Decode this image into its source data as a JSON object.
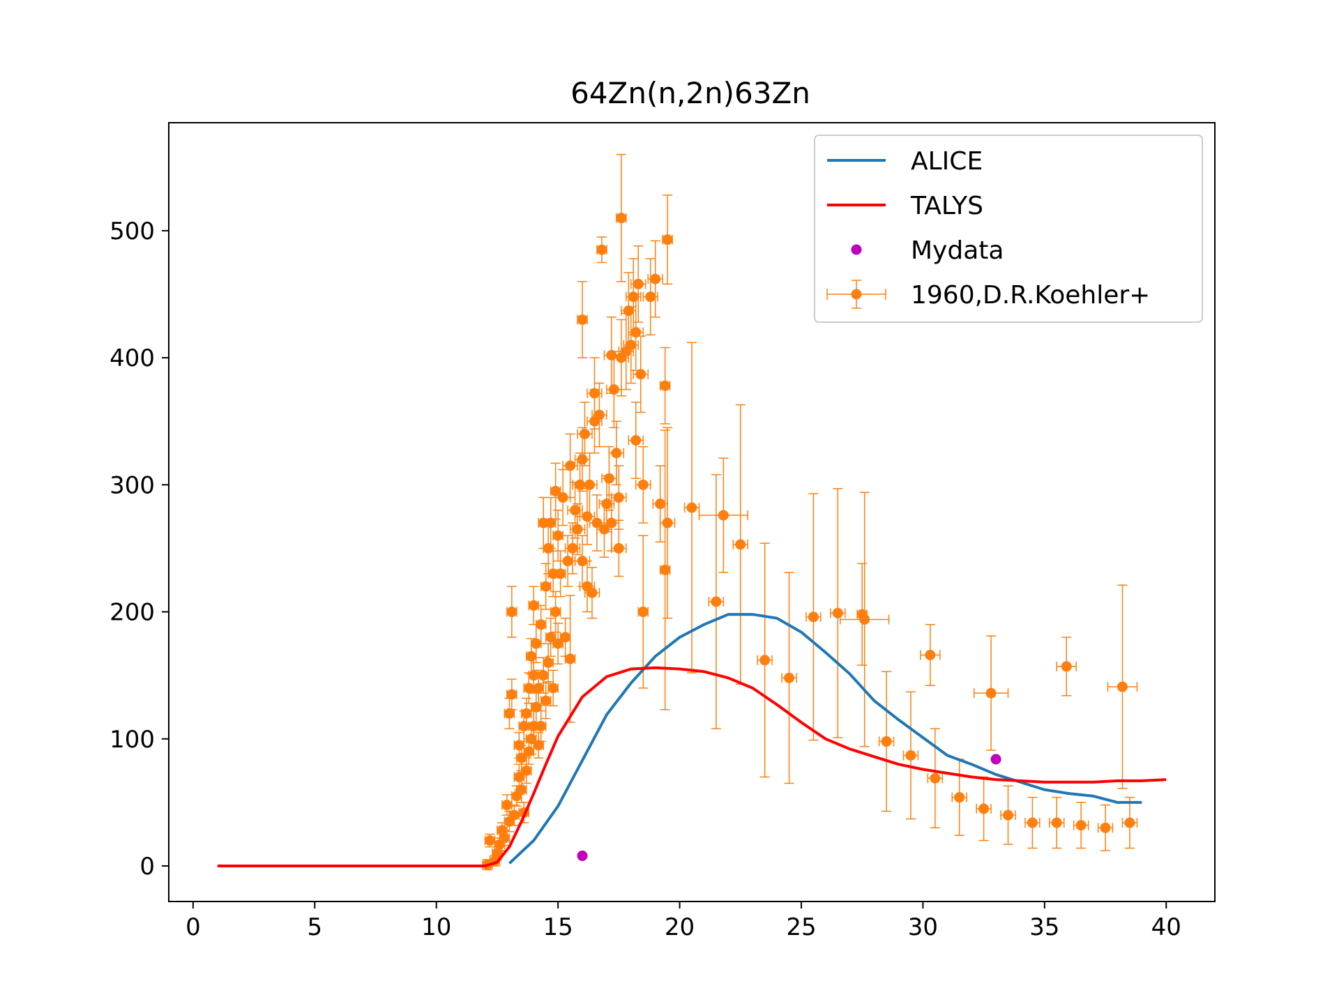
{
  "chart_data": {
    "type": "scatter",
    "title": "64Zn(n,2n)63Zn",
    "xlabel": "",
    "ylabel": "",
    "xlim": [
      -1,
      42
    ],
    "ylim": [
      -28,
      585
    ],
    "xticks": [
      0,
      5,
      10,
      15,
      20,
      25,
      30,
      35,
      40
    ],
    "yticks": [
      0,
      100,
      200,
      300,
      400,
      500
    ],
    "grid": false,
    "legend_position": "top-right",
    "series": [
      {
        "name": "ALICE",
        "kind": "line",
        "color": "#1f77b4",
        "x": [
          13,
          14,
          15,
          16,
          17,
          18,
          19,
          20,
          21,
          22,
          23,
          24,
          25,
          26,
          27,
          28,
          29,
          30,
          31,
          32,
          33,
          34,
          35,
          36,
          37,
          38,
          39
        ],
        "y": [
          2,
          20,
          47,
          83,
          119,
          144,
          165,
          180,
          190,
          198,
          198,
          195,
          184,
          168,
          151,
          130,
          115,
          101,
          87,
          80,
          72,
          66,
          60,
          57,
          55,
          50,
          50
        ]
      },
      {
        "name": "TALYS",
        "kind": "line",
        "color": "#ff0000",
        "x": [
          1,
          2,
          3,
          4,
          5,
          6,
          7,
          8,
          9,
          10,
          11,
          12,
          12.5,
          13,
          13.5,
          14,
          14.5,
          15,
          16,
          17,
          18,
          19,
          20,
          21,
          22,
          23,
          24,
          25,
          26,
          27,
          28,
          29,
          30,
          31,
          32,
          33,
          34,
          35,
          36,
          37,
          38,
          39,
          40
        ],
        "y": [
          0,
          0,
          0,
          0,
          0,
          0,
          0,
          0,
          0,
          0,
          0,
          0,
          3,
          15,
          35,
          57,
          80,
          102,
          133,
          149,
          155,
          156,
          155,
          153,
          148,
          140,
          127,
          113,
          100,
          92,
          86,
          80,
          76,
          73,
          70,
          68,
          67,
          66,
          66,
          66,
          67,
          67,
          68
        ],
        "note_dummy": ""
      },
      {
        "name": "Mydata",
        "kind": "points",
        "color": "#bf00bf",
        "x": [
          16,
          33
        ],
        "y": [
          8,
          84
        ]
      },
      {
        "name": "1960,D.R.Koehler+",
        "kind": "errorbar",
        "color": "#ff7f0e",
        "points": [
          [
            12.1,
            1,
            0.2,
            4
          ],
          [
            12.2,
            20,
            0.2,
            5
          ],
          [
            12.4,
            4,
            0.2,
            4
          ],
          [
            12.5,
            10,
            0.2,
            5
          ],
          [
            12.6,
            17,
            0.2,
            5
          ],
          [
            12.7,
            28,
            0.2,
            6
          ],
          [
            12.8,
            22,
            0.2,
            6
          ],
          [
            12.9,
            48,
            0.2,
            8
          ],
          [
            13.0,
            35,
            0.2,
            8
          ],
          [
            13.0,
            120,
            0.2,
            12
          ],
          [
            13.1,
            135,
            0.2,
            12
          ],
          [
            13.1,
            200,
            0.2,
            20
          ],
          [
            13.2,
            40,
            0.2,
            8
          ],
          [
            13.3,
            55,
            0.2,
            8
          ],
          [
            13.4,
            70,
            0.2,
            10
          ],
          [
            13.4,
            95,
            0.2,
            10
          ],
          [
            13.5,
            60,
            0.2,
            10
          ],
          [
            13.5,
            85,
            0.2,
            10
          ],
          [
            13.6,
            42,
            0.2,
            8
          ],
          [
            13.6,
            110,
            0.2,
            12
          ],
          [
            13.7,
            75,
            0.2,
            10
          ],
          [
            13.7,
            120,
            0.2,
            12
          ],
          [
            13.8,
            90,
            0.2,
            10
          ],
          [
            13.8,
            140,
            0.2,
            12
          ],
          [
            13.9,
            100,
            0.2,
            12
          ],
          [
            13.9,
            165,
            0.2,
            14
          ],
          [
            14.0,
            205,
            0.2,
            15
          ],
          [
            14.0,
            110,
            0.2,
            12
          ],
          [
            14.0,
            150,
            0.2,
            14
          ],
          [
            14.1,
            125,
            0.2,
            12
          ],
          [
            14.1,
            175,
            0.2,
            15
          ],
          [
            14.2,
            95,
            0.2,
            10
          ],
          [
            14.2,
            140,
            0.2,
            14
          ],
          [
            14.3,
            110,
            0.2,
            12
          ],
          [
            14.3,
            190,
            0.2,
            15
          ],
          [
            14.4,
            150,
            0.2,
            14
          ],
          [
            14.4,
            270,
            0.2,
            20
          ],
          [
            14.5,
            130,
            0.2,
            14
          ],
          [
            14.5,
            220,
            0.2,
            18
          ],
          [
            14.6,
            160,
            0.2,
            15
          ],
          [
            14.6,
            250,
            0.2,
            20
          ],
          [
            14.7,
            180,
            0.2,
            15
          ],
          [
            14.7,
            270,
            0.2,
            20
          ],
          [
            14.8,
            140,
            0.2,
            14
          ],
          [
            14.8,
            230,
            0.2,
            18
          ],
          [
            14.9,
            200,
            0.2,
            16
          ],
          [
            14.9,
            295,
            0.2,
            22
          ],
          [
            15.0,
            175,
            0.2,
            16
          ],
          [
            15.0,
            260,
            0.2,
            20
          ],
          [
            15.1,
            230,
            0.2,
            18
          ],
          [
            15.2,
            290,
            0.3,
            22
          ],
          [
            15.3,
            180,
            0.2,
            15
          ],
          [
            15.4,
            240,
            0.3,
            20
          ],
          [
            15.5,
            315,
            0.3,
            25
          ],
          [
            15.5,
            163,
            0.2,
            50
          ],
          [
            15.6,
            250,
            0.3,
            20
          ],
          [
            15.7,
            280,
            0.3,
            22
          ],
          [
            15.8,
            265,
            0.3,
            20
          ],
          [
            15.9,
            300,
            0.3,
            25
          ],
          [
            16.0,
            240,
            0.3,
            20
          ],
          [
            16.0,
            320,
            0.3,
            25
          ],
          [
            16.1,
            340,
            0.3,
            25
          ],
          [
            16.2,
            220,
            0.3,
            20
          ],
          [
            16.2,
            275,
            0.3,
            22
          ],
          [
            16.3,
            300,
            0.3,
            25
          ],
          [
            16.4,
            215,
            0.3,
            20
          ],
          [
            16.5,
            350,
            0.3,
            25
          ],
          [
            16.6,
            270,
            0.3,
            22
          ],
          [
            16.7,
            355,
            0.3,
            25
          ],
          [
            16.8,
            485,
            0.2,
            10
          ],
          [
            16.9,
            265,
            0.3,
            22
          ],
          [
            17.0,
            285,
            0.3,
            22
          ],
          [
            17.1,
            305,
            0.3,
            25
          ],
          [
            17.2,
            270,
            0.3,
            22
          ],
          [
            17.3,
            375,
            0.3,
            30
          ],
          [
            17.4,
            325,
            0.3,
            25
          ],
          [
            17.5,
            250,
            0.3,
            22
          ],
          [
            17.5,
            290,
            0.3,
            25
          ],
          [
            17.6,
            510,
            0.2,
            50
          ],
          [
            17.6,
            400,
            0.3,
            30
          ],
          [
            17.8,
            405,
            0.3,
            30
          ],
          [
            17.9,
            437,
            0.3,
            30
          ],
          [
            18.0,
            410,
            0.3,
            30
          ],
          [
            18.1,
            448,
            0.3,
            30
          ],
          [
            18.2,
            335,
            0.3,
            30
          ],
          [
            18.2,
            420,
            0.3,
            30
          ],
          [
            18.4,
            387,
            0.3,
            30
          ],
          [
            18.5,
            300,
            0.3,
            30
          ],
          [
            18.5,
            200,
            0.2,
            60
          ],
          [
            18.8,
            448,
            0.3,
            30
          ],
          [
            19.0,
            462,
            0.3,
            30
          ],
          [
            19.2,
            285,
            0.3,
            30
          ],
          [
            19.4,
            378,
            0.2,
            30
          ],
          [
            19.4,
            233,
            0.2,
            110
          ],
          [
            19.5,
            493,
            0.2,
            35
          ],
          [
            19.5,
            270,
            0.3,
            75
          ],
          [
            16.0,
            430,
            0.2,
            30
          ],
          [
            16.5,
            372,
            0.3,
            28
          ],
          [
            17.2,
            402,
            0.3,
            30
          ],
          [
            18.3,
            458,
            0.3,
            30
          ],
          [
            20.5,
            282,
            0.3,
            130
          ],
          [
            21.5,
            208,
            0.3,
            100
          ],
          [
            21.8,
            276,
            1.0,
            45
          ],
          [
            22.5,
            253,
            0.3,
            110
          ],
          [
            23.5,
            162,
            0.3,
            92
          ],
          [
            24.5,
            148,
            0.3,
            83
          ],
          [
            25.5,
            196,
            0.3,
            97
          ],
          [
            26.5,
            199,
            0.3,
            98
          ],
          [
            27.5,
            198,
            0.2,
            40
          ],
          [
            27.6,
            194,
            1.0,
            100
          ],
          [
            28.5,
            98,
            0.3,
            55
          ],
          [
            29.5,
            87,
            0.3,
            50
          ],
          [
            30.3,
            166,
            0.4,
            24
          ],
          [
            30.5,
            69,
            0.3,
            39
          ],
          [
            31.5,
            54,
            0.3,
            30
          ],
          [
            32.5,
            45,
            0.3,
            25
          ],
          [
            32.8,
            136,
            0.7,
            45
          ],
          [
            33.5,
            40,
            0.3,
            23
          ],
          [
            34.5,
            34,
            0.3,
            20
          ],
          [
            35.5,
            34,
            0.3,
            20
          ],
          [
            35.9,
            157,
            0.4,
            23
          ],
          [
            36.5,
            32,
            0.3,
            18
          ],
          [
            37.5,
            30,
            0.3,
            18
          ],
          [
            38.2,
            141,
            0.6,
            80
          ],
          [
            38.5,
            34,
            0.3,
            20
          ]
        ]
      }
    ]
  }
}
